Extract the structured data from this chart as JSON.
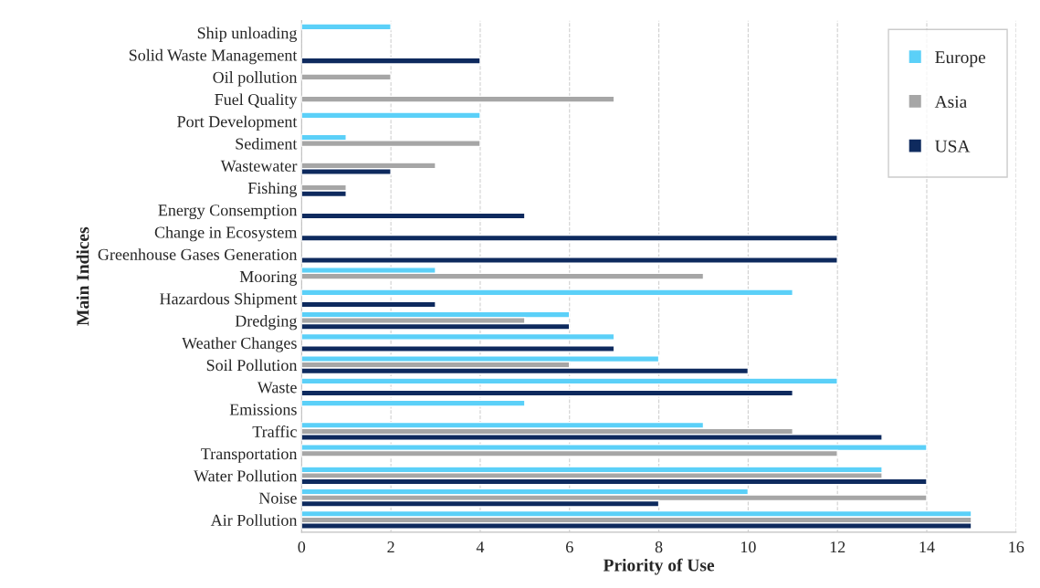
{
  "chart_data": {
    "type": "bar",
    "orientation": "horizontal",
    "xlabel": "Priority of Use",
    "ylabel": "Main Indices",
    "categories": [
      "Ship unloading",
      "Solid Waste Management",
      "Oil pollution",
      "Fuel Quality",
      "Port Development",
      "Sediment",
      "Wastewater",
      "Fishing",
      "Energy Consemption",
      "Change in Ecosystem",
      "Greenhouse Gases Generation",
      "Mooring",
      "Hazardous Shipment",
      "Dredging",
      "Weather Changes",
      "Soil Pollution",
      "Waste",
      "Emissions",
      "Traffic",
      "Transportation",
      "Water Pollution",
      "Noise",
      "Air Pollution"
    ],
    "series": [
      {
        "name": "Europe",
        "color": "#5bd0f8",
        "values": [
          2,
          null,
          null,
          null,
          4,
          1,
          null,
          null,
          null,
          null,
          null,
          3,
          11,
          6,
          7,
          8,
          12,
          5,
          9,
          14,
          13,
          10,
          15
        ]
      },
      {
        "name": "Asia",
        "color": "#a6a6a6",
        "values": [
          null,
          null,
          2,
          7,
          null,
          4,
          3,
          1,
          null,
          null,
          null,
          9,
          null,
          5,
          null,
          6,
          null,
          null,
          11,
          12,
          13,
          14,
          15
        ]
      },
      {
        "name": "USA",
        "color": "#0e2a5e",
        "values": [
          null,
          4,
          null,
          null,
          null,
          null,
          2,
          1,
          5,
          12,
          12,
          null,
          3,
          6,
          7,
          10,
          11,
          null,
          13,
          null,
          14,
          8,
          15
        ]
      }
    ],
    "xlim": [
      0,
      16
    ],
    "xticks": [
      0,
      2,
      4,
      6,
      8,
      10,
      12,
      14,
      16
    ],
    "grid": "x",
    "legend": "top right"
  }
}
